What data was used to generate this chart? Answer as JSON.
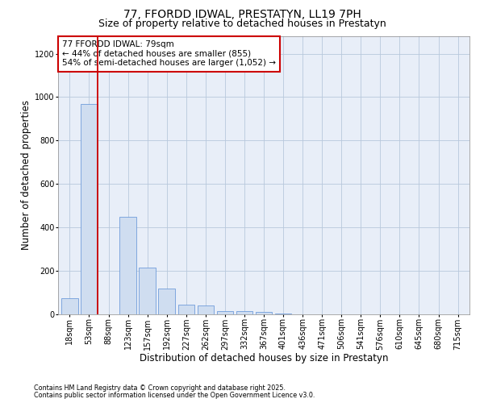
{
  "title": "77, FFORDD IDWAL, PRESTATYN, LL19 7PH",
  "subtitle": "Size of property relative to detached houses in Prestatyn",
  "xlabel": "Distribution of detached houses by size in Prestatyn",
  "ylabel": "Number of detached properties",
  "footnote1": "Contains HM Land Registry data © Crown copyright and database right 2025.",
  "footnote2": "Contains public sector information licensed under the Open Government Licence v3.0.",
  "categories": [
    "18sqm",
    "53sqm",
    "88sqm",
    "123sqm",
    "157sqm",
    "192sqm",
    "227sqm",
    "262sqm",
    "297sqm",
    "332sqm",
    "367sqm",
    "401sqm",
    "436sqm",
    "471sqm",
    "506sqm",
    "541sqm",
    "576sqm",
    "610sqm",
    "645sqm",
    "680sqm",
    "715sqm"
  ],
  "values": [
    75,
    970,
    0,
    450,
    215,
    120,
    45,
    40,
    15,
    15,
    10,
    5,
    0,
    0,
    0,
    0,
    0,
    0,
    0,
    0,
    0
  ],
  "bar_color": "#cfddf0",
  "bar_edge_color": "#5b8ed6",
  "vline_color": "#cc0000",
  "vline_x_idx": 1,
  "annotation_text": "77 FFORDD IDWAL: 79sqm\n← 44% of detached houses are smaller (855)\n54% of semi-detached houses are larger (1,052) →",
  "annotation_box_color": "#ffffff",
  "annotation_box_edge_color": "#cc0000",
  "ylim": [
    0,
    1280
  ],
  "yticks": [
    0,
    200,
    400,
    600,
    800,
    1000,
    1200
  ],
  "plot_background": "#e8eef8",
  "title_fontsize": 10,
  "subtitle_fontsize": 9,
  "tick_fontsize": 7,
  "xlabel_fontsize": 8.5,
  "ylabel_fontsize": 8.5,
  "annotation_fontsize": 7.5
}
